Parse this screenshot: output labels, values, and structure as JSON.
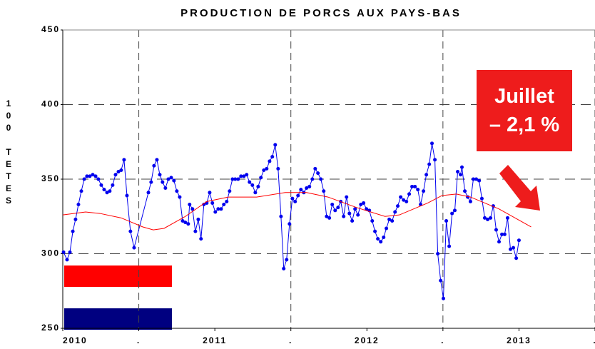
{
  "chart_data": {
    "type": "line",
    "title": "PRODUCTION DE PORCS AUX PAYS-BAS",
    "ylabel": "100 TETES",
    "annotation": [
      "Juillet",
      "– 2,1 %"
    ],
    "ylim": [
      250,
      450
    ],
    "yticks": [
      250,
      300,
      350,
      400,
      450
    ],
    "xlim": [
      2010,
      2013.5
    ],
    "xticks": [
      2010,
      {
        "value": 2010.5,
        "label": "."
      },
      2011,
      {
        "value": 2011.5,
        "label": "."
      },
      2012,
      {
        "value": 2012.5,
        "label": "."
      },
      2013,
      {
        "value": 2013.5,
        "label": "."
      }
    ],
    "grid": true,
    "series": [
      {
        "color": "#0000ee",
        "markers": true,
        "x": [
          2010.005,
          2010.028,
          2010.047,
          2010.066,
          2010.084,
          2010.103,
          2010.122,
          2010.141,
          2010.159,
          2010.178,
          2010.197,
          2010.216,
          2010.234,
          2010.253,
          2010.272,
          2010.291,
          2010.309,
          2010.328,
          2010.347,
          2010.366,
          2010.384,
          2010.403,
          2010.422,
          2010.445,
          2010.469,
          2010.563,
          2010.581,
          2010.6,
          2010.619,
          2010.638,
          2010.656,
          2010.675,
          2010.694,
          2010.713,
          2010.731,
          2010.75,
          2010.769,
          2010.788,
          2010.806,
          2010.825,
          2010.834,
          2010.853,
          2010.872,
          2010.891,
          2010.909,
          2010.928,
          2010.947,
          2010.966,
          2010.984,
          2011.003,
          2011.022,
          2011.041,
          2011.059,
          2011.078,
          2011.097,
          2011.116,
          2011.134,
          2011.153,
          2011.172,
          2011.191,
          2011.209,
          2011.228,
          2011.247,
          2011.266,
          2011.285,
          2011.303,
          2011.322,
          2011.341,
          2011.36,
          2011.378,
          2011.397,
          2011.416,
          2011.435,
          2011.453,
          2011.472,
          2011.491,
          2011.51,
          2011.528,
          2011.547,
          2011.566,
          2011.585,
          2011.603,
          2011.622,
          2011.641,
          2011.66,
          2011.678,
          2011.697,
          2011.716,
          2011.735,
          2011.753,
          2011.772,
          2011.791,
          2011.81,
          2011.828,
          2011.847,
          2011.866,
          2011.885,
          2011.903,
          2011.922,
          2011.941,
          2011.96,
          2011.978,
          2011.997,
          2012.016,
          2012.035,
          2012.053,
          2012.072,
          2012.091,
          2012.11,
          2012.128,
          2012.147,
          2012.166,
          2012.185,
          2012.203,
          2012.222,
          2012.241,
          2012.26,
          2012.278,
          2012.297,
          2012.316,
          2012.335,
          2012.353,
          2012.372,
          2012.391,
          2012.41,
          2012.428,
          2012.447,
          2012.466,
          2012.485,
          2012.503,
          2012.522,
          2012.541,
          2012.56,
          2012.578,
          2012.597,
          2012.616,
          2012.625,
          2012.644,
          2012.663,
          2012.681,
          2012.7,
          2012.719,
          2012.738,
          2012.756,
          2012.775,
          2012.794,
          2012.813,
          2012.831,
          2012.85,
          2012.869,
          2012.888,
          2012.906,
          2012.925,
          2012.944,
          2012.963,
          2012.982,
          2013.0
        ],
        "values": [
          301,
          296,
          301,
          315,
          323,
          333,
          342,
          350,
          352,
          352,
          353,
          352,
          350,
          346,
          343,
          341,
          342,
          346,
          353,
          355,
          356,
          363,
          339,
          315,
          304,
          341,
          348,
          359,
          363,
          353,
          348,
          344,
          350,
          351,
          349,
          342,
          338,
          322,
          321,
          320,
          333,
          330,
          315,
          323,
          310,
          333,
          334,
          341,
          334,
          328,
          330,
          330,
          333,
          335,
          342,
          350,
          350,
          350,
          352,
          352,
          353,
          348,
          346,
          341,
          345,
          351,
          356,
          357,
          362,
          365,
          373,
          357,
          325,
          290,
          296,
          320,
          337,
          335,
          339,
          343,
          341,
          344,
          345,
          350,
          357,
          354,
          350,
          342,
          325,
          324,
          333,
          329,
          331,
          335,
          325,
          338,
          327,
          322,
          330,
          326,
          333,
          334,
          330,
          329,
          322,
          315,
          310,
          308,
          311,
          317,
          323,
          322,
          328,
          332,
          338,
          336,
          335,
          340,
          345,
          345,
          343,
          333,
          342,
          353,
          360,
          374,
          363,
          300,
          282,
          270,
          322,
          305,
          327,
          329,
          355,
          353,
          358,
          342,
          338,
          335,
          350,
          350,
          349,
          337,
          324,
          323,
          324,
          332,
          316,
          308,
          313,
          313,
          324,
          303,
          304,
          297,
          309
        ]
      },
      {
        "color": "#ff0000",
        "markers": false,
        "x": [
          2010,
          2010.15,
          2010.244,
          2010.384,
          2010.525,
          2010.595,
          2010.666,
          2010.806,
          2010.947,
          2011.088,
          2011.275,
          2011.463,
          2011.603,
          2011.744,
          2011.931,
          2012.119,
          2012.213,
          2012.4,
          2012.494,
          2012.588,
          2012.681,
          2012.869,
          2013.08
        ],
        "values": [
          326,
          328,
          327,
          324,
          318,
          316,
          317,
          325,
          335,
          338,
          338,
          341,
          341,
          338,
          331,
          325,
          326,
          334,
          339,
          340,
          338,
          330,
          318
        ]
      }
    ]
  }
}
